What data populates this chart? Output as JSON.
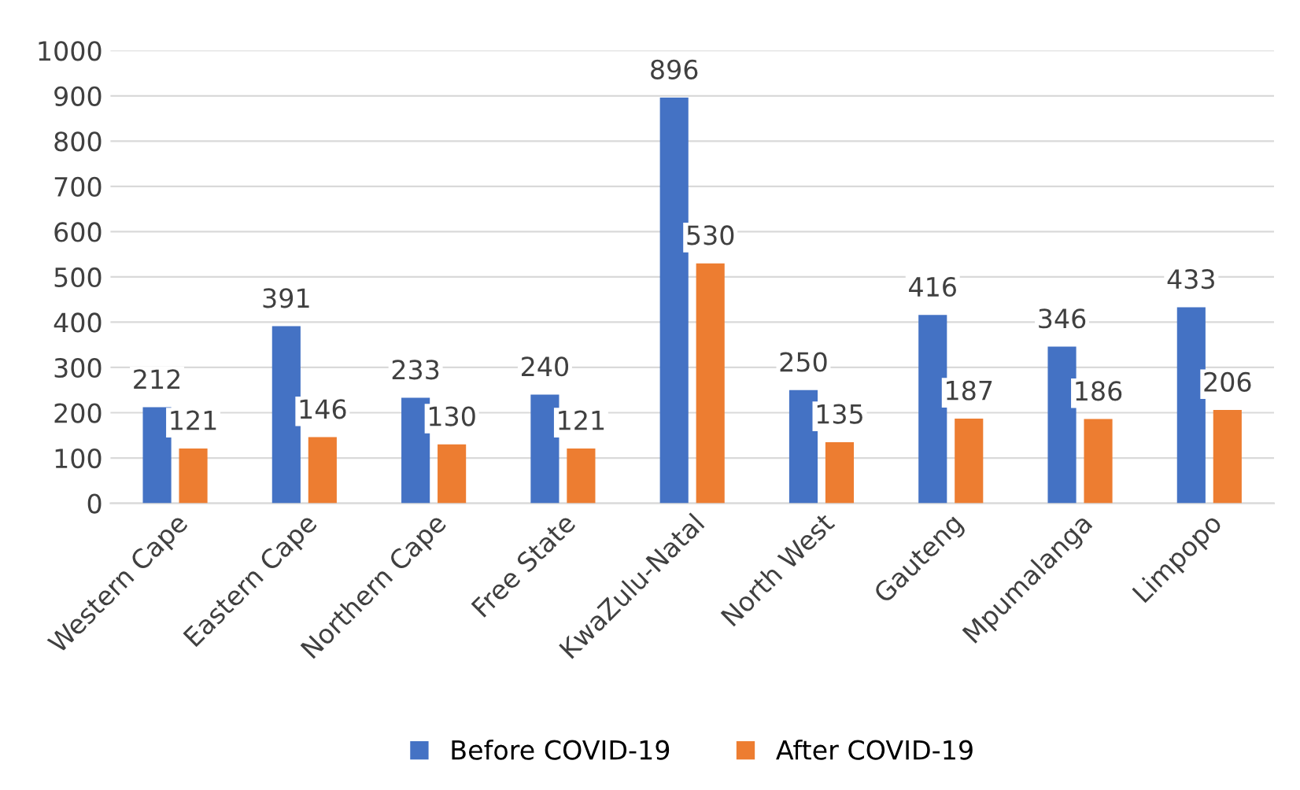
{
  "chart_data": {
    "type": "bar",
    "categories": [
      "Western Cape",
      "Eastern Cape",
      "Northern Cape",
      "Free State",
      "KwaZulu-Natal",
      "North West",
      "Gauteng",
      "Mpumalanga",
      "Limpopo"
    ],
    "series": [
      {
        "name": "Before COVID-19",
        "color": "#4472c4",
        "values": [
          212,
          391,
          233,
          240,
          896,
          250,
          416,
          346,
          433
        ]
      },
      {
        "name": "After COVID-19",
        "color": "#ed7d31",
        "values": [
          121,
          146,
          130,
          121,
          530,
          135,
          187,
          186,
          206
        ]
      }
    ],
    "ylim": [
      0,
      1000
    ],
    "yticks": [
      0,
      100,
      200,
      300,
      400,
      500,
      600,
      700,
      800,
      900,
      1000
    ],
    "grid": "y",
    "legend": "bottom",
    "data_labels": true
  }
}
